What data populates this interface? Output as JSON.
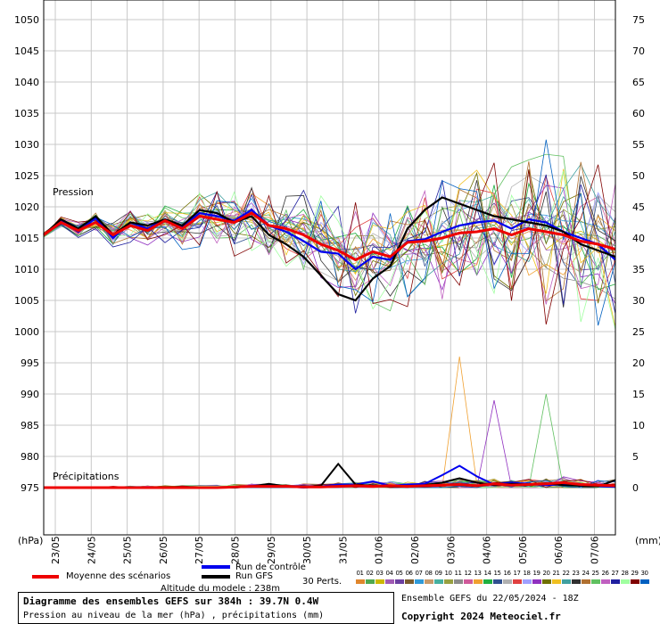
{
  "chart_data": {
    "type": "line",
    "title": "Diagramme des ensembles GEFS sur 384h : 39.7N 0.4W",
    "subtitle": "Pression au niveau de la mer (hPa) , précipitations (mm)",
    "altitude": "Altitude du modele : 238m",
    "ensemble_run": "Ensemble GEFS du 22/05/2024 - 18Z",
    "copyright": "Copyright 2024 Meteociel.fr",
    "left_axis": {
      "label": "(hPa)",
      "min": 975,
      "max": 1050,
      "ticks": [
        1050,
        1045,
        1040,
        1035,
        1030,
        1025,
        1020,
        1015,
        1010,
        1005,
        1000,
        995,
        990,
        985,
        980,
        975
      ]
    },
    "right_axis": {
      "label": "(mm)",
      "min": 0,
      "max": 75,
      "ticks": [
        75,
        70,
        65,
        60,
        55,
        50,
        45,
        40,
        35,
        30,
        25,
        20,
        15,
        10,
        5,
        0
      ]
    },
    "x_labels": [
      "23/05",
      "24/05",
      "25/05",
      "26/05",
      "27/05",
      "28/05",
      "29/05",
      "30/05",
      "31/05",
      "01/06",
      "02/06",
      "03/06",
      "04/06",
      "05/06",
      "06/06",
      "07/06"
    ],
    "x_hours_range": [
      0,
      390
    ],
    "annotations": {
      "pressure": "Pression",
      "precip": "Précipitations"
    },
    "legend": {
      "mean": {
        "label": "Moyenne des scénarios",
        "color": "#ee0000"
      },
      "control": {
        "label": "Run de contrôle",
        "color": "#0000ee"
      },
      "gfs": {
        "label": "Run GFS",
        "color": "#000000"
      },
      "perts_label": "30 Perts."
    },
    "perturbations": {
      "labels": [
        "01",
        "02",
        "03",
        "04",
        "05",
        "06",
        "07",
        "08",
        "09",
        "10",
        "11",
        "12",
        "13",
        "14",
        "15",
        "16",
        "17",
        "18",
        "19",
        "20",
        "21",
        "22",
        "23",
        "24",
        "25",
        "26",
        "27",
        "28",
        "29",
        "30"
      ],
      "colors": [
        "#e0862c",
        "#4fa84f",
        "#cdb800",
        "#a05ab4",
        "#6b3fa0",
        "#7a5c2e",
        "#2f9ad8",
        "#c89a6a",
        "#46b0a0",
        "#98a040",
        "#8c8c8c",
        "#d05a9a",
        "#f0a030",
        "#20b040",
        "#305090",
        "#b0b0b0",
        "#e04040",
        "#a0a0ff",
        "#9030c0",
        "#707000",
        "#f0c020",
        "#40a0a0",
        "#303030",
        "#b07030",
        "#60c060",
        "#c060c0",
        "#2020a0",
        "#a0ffa0",
        "#800000",
        "#0060c0"
      ]
    },
    "pressure_series": {
      "mean": {
        "values": [
          1015.5,
          1017.5,
          1016.2,
          1017.5,
          1015.5,
          1017.0,
          1016.2,
          1017.8,
          1016.5,
          1018.5,
          1018.0,
          1017.5,
          1019.0,
          1017.0,
          1016.5,
          1015.5,
          1014.0,
          1013.0,
          1011.5,
          1012.8,
          1012.0,
          1014.3,
          1014.5,
          1015.0,
          1015.8,
          1016.0,
          1016.5,
          1015.5,
          1016.5,
          1016.0,
          1015.5,
          1014.5,
          1014.0,
          1013.2
        ]
      },
      "control": {
        "values": [
          1015.5,
          1017.8,
          1016.0,
          1018.2,
          1015.0,
          1017.5,
          1016.5,
          1018.0,
          1016.8,
          1019.0,
          1018.5,
          1017.8,
          1019.5,
          1017.0,
          1016.0,
          1014.5,
          1012.8,
          1012.5,
          1010.0,
          1012.0,
          1011.5,
          1014.5,
          1014.8,
          1016.0,
          1017.0,
          1017.5,
          1017.8,
          1016.5,
          1018.0,
          1017.5,
          1016.0,
          1015.0,
          1014.0,
          1011.5
        ]
      },
      "gfs": {
        "values": [
          1015.5,
          1018.0,
          1016.5,
          1018.5,
          1015.5,
          1017.5,
          1017.0,
          1018.0,
          1017.0,
          1019.5,
          1019.0,
          1017.5,
          1018.5,
          1015.5,
          1014.0,
          1012.0,
          1009.0,
          1006.0,
          1005.0,
          1008.5,
          1010.5,
          1016.5,
          1019.5,
          1021.5,
          1020.5,
          1019.5,
          1018.5,
          1018.0,
          1017.5,
          1017.0,
          1016.0,
          1014.0,
          1013.0,
          1012.0
        ]
      }
    },
    "precip_series": {
      "mean": {
        "values": [
          0,
          0,
          0,
          0,
          0,
          0,
          0,
          0,
          0,
          0,
          0,
          0.1,
          0.2,
          0.2,
          0.2,
          0.1,
          0.1,
          0.2,
          0.3,
          0.2,
          0.3,
          0.2,
          0.3,
          0.4,
          0.5,
          0.3,
          0.6,
          0.4,
          0.5,
          0.6,
          0.8,
          0.5,
          0.4,
          0.3
        ]
      },
      "control": {
        "values": [
          0,
          0,
          0,
          0,
          0,
          0,
          0,
          0,
          0,
          0,
          0,
          0,
          0.3,
          0.4,
          0.2,
          0,
          0.2,
          0.5,
          0.5,
          1.0,
          0.3,
          0.5,
          0.6,
          2.0,
          3.5,
          1.8,
          0.5,
          0.8,
          0.6,
          0.4,
          0.5,
          0.3,
          0.2,
          0.1
        ]
      },
      "gfs": {
        "values": [
          0,
          0,
          0,
          0,
          0,
          0,
          0,
          0,
          0,
          0,
          0,
          0,
          0.2,
          0.6,
          0.2,
          0.1,
          0.3,
          3.8,
          0.5,
          0.3,
          0.2,
          0.1,
          0.4,
          0.8,
          1.5,
          0.8,
          0.4,
          0.6,
          0.5,
          0.7,
          0.4,
          0.3,
          0.2,
          1.2
        ]
      }
    }
  }
}
